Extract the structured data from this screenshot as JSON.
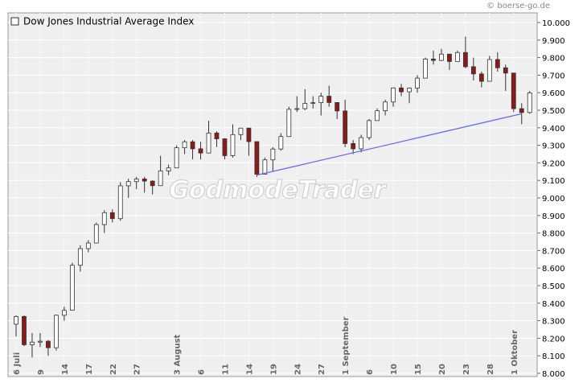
{
  "chart_data": {
    "type": "candlestick",
    "source": "© boerse-go.de",
    "watermark": "GodmodeTrader",
    "up_color": "#ffffff",
    "down_color": "#8b1a1a",
    "categories": [
      "6 Juli",
      null,
      null,
      "9",
      null,
      null,
      "14",
      null,
      null,
      "17",
      null,
      null,
      "22",
      null,
      null,
      "27",
      null,
      null,
      null,
      null,
      "3 August",
      null,
      null,
      "6",
      null,
      null,
      "11",
      null,
      null,
      "14",
      null,
      null,
      "19",
      null,
      null,
      "24",
      null,
      null,
      "27",
      null,
      null,
      "1 September",
      null,
      null,
      "6",
      null,
      null,
      "10",
      null,
      null,
      "15",
      null,
      null,
      "20",
      null,
      null,
      "23",
      null,
      null,
      "28",
      null,
      null,
      "1 Oktober",
      null,
      null
    ],
    "series": [
      {
        "name": "Dow Jones Industrial Average Index",
        "open": [
          8280,
          8324,
          8163,
          8178,
          8183,
          8146,
          8331,
          8360,
          8616,
          8711,
          8743,
          8848,
          8916,
          8882,
          9069,
          9093,
          9108,
          9096,
          9070,
          9154,
          9171,
          9286,
          9320,
          9280,
          9256,
          9370,
          9337,
          9241,
          9361,
          9398,
          9321,
          9135,
          9217,
          9279,
          9350,
          9505,
          9509,
          9539,
          9543,
          9580,
          9544,
          9496,
          9310,
          9280,
          9344,
          9441,
          9497,
          9547,
          9627,
          9605,
          9626,
          9683,
          9792,
          9784,
          9820,
          9778,
          9829,
          9748,
          9707,
          9665,
          9789,
          9742,
          9712,
          9509,
          9487
        ],
        "high": [
          8330,
          8330,
          8230,
          8230,
          8190,
          8335,
          8380,
          8630,
          8730,
          8760,
          8860,
          8930,
          8935,
          9090,
          9110,
          9120,
          9120,
          9100,
          9240,
          9190,
          9300,
          9330,
          9330,
          9320,
          9440,
          9380,
          9340,
          9420,
          9400,
          9400,
          9321,
          9230,
          9290,
          9370,
          9520,
          9580,
          9620,
          9580,
          9600,
          9640,
          9544,
          9560,
          9330,
          9360,
          9450,
          9510,
          9560,
          9630,
          9650,
          9630,
          9700,
          9800,
          9840,
          9850,
          9820,
          9840,
          9920,
          9800,
          9720,
          9810,
          9830,
          9760,
          9712,
          9540,
          9610
        ],
        "low": [
          8210,
          8155,
          8090,
          8150,
          8100,
          8130,
          8300,
          8360,
          8580,
          8690,
          8743,
          8800,
          8860,
          8870,
          9000,
          9050,
          9030,
          9020,
          9070,
          9130,
          9171,
          9250,
          9220,
          9220,
          9256,
          9290,
          9220,
          9230,
          9330,
          9240,
          9120,
          9135,
          9150,
          9270,
          9350,
          9490,
          9500,
          9510,
          9470,
          9520,
          9450,
          9290,
          9250,
          9260,
          9330,
          9441,
          9470,
          9520,
          9580,
          9540,
          9600,
          9683,
          9760,
          9780,
          9730,
          9778,
          9740,
          9670,
          9630,
          9665,
          9720,
          9610,
          9490,
          9420,
          9480
        ],
        "close": [
          8324,
          8163,
          8178,
          8183,
          8146,
          8331,
          8359,
          8616,
          8711,
          8743,
          8848,
          8916,
          8882,
          9069,
          9093,
          9108,
          9096,
          9070,
          9154,
          9171,
          9286,
          9320,
          9280,
          9256,
          9370,
          9337,
          9241,
          9361,
          9398,
          9321,
          9135,
          9217,
          9279,
          9350,
          9505,
          9509,
          9539,
          9543,
          9580,
          9544,
          9496,
          9310,
          9280,
          9344,
          9441,
          9497,
          9547,
          9627,
          9605,
          9626,
          9683,
          9792,
          9784,
          9820,
          9778,
          9829,
          9748,
          9707,
          9665,
          9789,
          9742,
          9712,
          9509,
          9487,
          9599
        ]
      }
    ],
    "trendline": {
      "from_index": 30,
      "from_value": 9130,
      "to_index": 63,
      "to_value": 9480,
      "color": "#6a6af0"
    },
    "ylim": [
      8000,
      10000
    ],
    "yticks": [
      {
        "value": 8000,
        "label": "8.000"
      },
      {
        "value": 8100,
        "label": "8.100"
      },
      {
        "value": 8200,
        "label": "8.200"
      },
      {
        "value": 8300,
        "label": "8.300"
      },
      {
        "value": 8400,
        "label": "8.400"
      },
      {
        "value": 8500,
        "label": "8.500"
      },
      {
        "value": 8600,
        "label": "8.600"
      },
      {
        "value": 8700,
        "label": "8.700"
      },
      {
        "value": 8800,
        "label": "8.800"
      },
      {
        "value": 8900,
        "label": "8.900"
      },
      {
        "value": 9000,
        "label": "9.000"
      },
      {
        "value": 9100,
        "label": "9.100"
      },
      {
        "value": 9200,
        "label": "9.200"
      },
      {
        "value": 9300,
        "label": "9.300"
      },
      {
        "value": 9400,
        "label": "9.400"
      },
      {
        "value": 9500,
        "label": "9.500"
      },
      {
        "value": 9600,
        "label": "9.600"
      },
      {
        "value": 9700,
        "label": "9.700"
      },
      {
        "value": 9800,
        "label": "9.800"
      },
      {
        "value": 9900,
        "label": "9.900"
      },
      {
        "value": 10000,
        "label": "10.000"
      }
    ],
    "grid": true
  }
}
